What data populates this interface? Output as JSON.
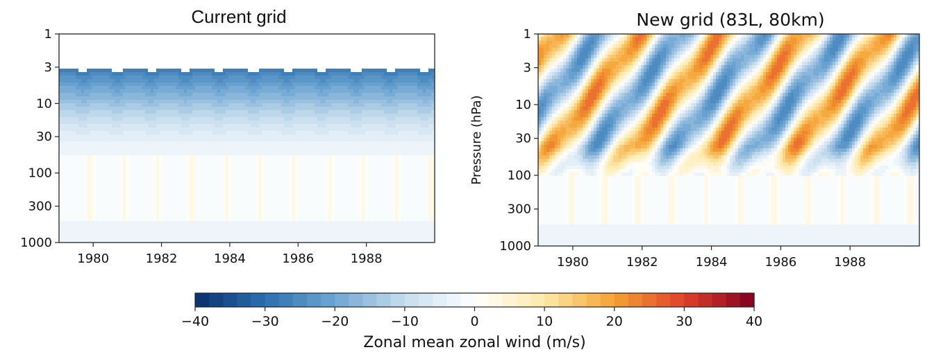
{
  "chart_data": [
    {
      "type": "heatmap",
      "title": "Current grid",
      "xlabel": "",
      "ylabel": "",
      "x_range": [
        1979,
        1990
      ],
      "xticks": [
        1980,
        1982,
        1984,
        1986,
        1988
      ],
      "y_scale": "log",
      "y_range": [
        1000,
        1
      ],
      "yticks": [
        1,
        3,
        10,
        30,
        100,
        300,
        1000
      ],
      "variable": "zonal mean zonal wind (m/s)",
      "pattern": {
        "kind": "annual",
        "period_years": 1.0,
        "data_top_hPa": 3,
        "upper_wind_ms": -26,
        "lower_wind_ms": 4
      }
    },
    {
      "type": "heatmap",
      "title": "New grid (83L, 80km)",
      "xlabel": "",
      "ylabel": "Pressure (hPa)",
      "x_range": [
        1979,
        1990
      ],
      "xticks": [
        1980,
        1982,
        1984,
        1986,
        1988
      ],
      "y_scale": "log",
      "y_range": [
        1000,
        1
      ],
      "yticks": [
        1,
        3,
        10,
        30,
        100,
        300,
        1000
      ],
      "variable": "zonal mean zonal wind (m/s)",
      "pattern": {
        "kind": "QBO-like descending",
        "period_years": 2.35,
        "amplitude_ms": 22,
        "lower_wind_ms": 5
      }
    }
  ],
  "colorbar": {
    "label": "Zonal mean zonal wind (m/s)",
    "ticks": [
      -40,
      -30,
      -20,
      -10,
      0,
      10,
      20,
      30,
      40
    ],
    "tick_labels": [
      "−40",
      "−30",
      "−20",
      "−10",
      "0",
      "10",
      "20",
      "30",
      "40"
    ],
    "range": [
      -40,
      40
    ],
    "colormap": "RdYlBu_r",
    "colors": [
      "#08306b",
      "#2c6fb0",
      "#6fa6d2",
      "#c6dcee",
      "#ffffff",
      "#fde9a6",
      "#f4a233",
      "#e0402b",
      "#7f0020"
    ]
  }
}
